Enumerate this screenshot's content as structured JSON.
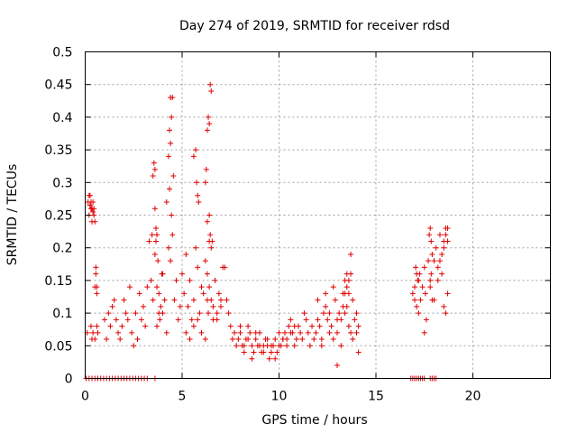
{
  "chart_data": {
    "type": "scatter",
    "title": "Day 274 of 2019, SRMTID for receiver rdsd",
    "xlabel": "GPS time / hours",
    "ylabel": "SRMTID / TECUs",
    "xlim": [
      0,
      24
    ],
    "ylim": [
      0,
      0.5
    ],
    "grid": true,
    "marker": "+",
    "series_color": "#e00000",
    "x_ticks": [
      0,
      5,
      10,
      15,
      20
    ],
    "x_tick_labels": [
      "0",
      "5",
      "10",
      "15",
      "20"
    ],
    "y_ticks": [
      0,
      0.05,
      0.1,
      0.15,
      0.2,
      0.25,
      0.3,
      0.35,
      0.4,
      0.45,
      0.5
    ],
    "y_tick_labels": [
      "0",
      "0.05",
      "0.1",
      "0.15",
      "0.2",
      "0.25",
      "0.3",
      "0.35",
      "0.4",
      "0.45",
      "0.5"
    ],
    "series": [
      {
        "name": "SRMTID",
        "x": [
          0.1,
          0.15,
          0.2,
          0.25,
          0.3,
          0.35,
          0.4,
          0.45,
          0.5,
          0.55,
          0.6,
          0.2,
          0.25,
          0.3,
          0.35,
          0.4,
          0.45,
          0.5,
          0.3,
          0.35,
          0.4,
          0.5,
          0.55,
          0.6,
          0.6,
          0.65,
          1.0,
          1.1,
          1.2,
          1.3,
          1.4,
          1.5,
          1.6,
          1.7,
          1.8,
          1.9,
          2.0,
          2.1,
          2.2,
          2.3,
          2.4,
          2.5,
          2.6,
          2.7,
          2.8,
          2.9,
          3.0,
          3.1,
          3.2,
          3.3,
          3.4,
          3.45,
          3.5,
          3.55,
          3.6,
          3.65,
          3.7,
          3.75,
          3.8,
          3.85,
          3.9,
          3.95,
          4.0,
          4.1,
          4.2,
          4.3,
          4.35,
          4.4,
          4.45,
          4.5,
          4.55,
          4.6,
          4.7,
          4.8,
          4.9,
          5.0,
          4.2,
          4.3,
          4.35,
          4.4,
          4.45,
          3.5,
          3.6,
          3.65,
          3.7,
          4.4,
          4.5,
          3.6,
          3.7,
          3.8,
          4.0,
          5.1,
          5.2,
          5.3,
          5.4,
          5.5,
          5.6,
          5.7,
          5.8,
          5.9,
          6.0,
          6.1,
          6.2,
          6.3,
          6.4,
          6.5,
          6.6,
          6.7,
          6.8,
          6.9,
          7.0,
          5.6,
          5.7,
          5.75,
          5.8,
          5.85,
          6.2,
          6.25,
          6.3,
          6.35,
          6.4,
          6.45,
          6.5,
          6.3,
          6.4,
          6.45,
          6.3,
          6.35,
          6.4,
          6.5,
          6.55,
          5.2,
          5.4,
          5.6,
          5.8,
          6.0,
          6.2,
          6.6,
          6.8,
          7.0,
          7.1,
          7.2,
          7.3,
          7.4,
          7.5,
          7.6,
          7.7,
          7.8,
          7.9,
          8.0,
          8.1,
          8.2,
          8.3,
          8.4,
          8.5,
          8.6,
          8.7,
          8.8,
          8.9,
          9.0,
          9.1,
          9.2,
          9.3,
          9.4,
          9.5,
          9.6,
          9.7,
          9.8,
          9.9,
          10.0,
          8.0,
          8.2,
          8.4,
          8.6,
          8.8,
          9.0,
          9.2,
          9.4,
          9.6,
          9.8,
          10.0,
          10.2,
          10.4,
          10.6,
          10.8,
          10.1,
          10.2,
          10.3,
          10.4,
          10.5,
          10.6,
          10.7,
          10.8,
          10.9,
          11.0,
          11.1,
          11.2,
          11.3,
          11.4,
          11.5,
          11.6,
          11.7,
          11.8,
          11.9,
          12.0,
          12.1,
          12.2,
          12.3,
          12.4,
          12.5,
          12.6,
          12.7,
          12.8,
          12.9,
          13.0,
          13.1,
          13.2,
          13.3,
          13.4,
          13.5,
          13.6,
          13.7,
          13.8,
          13.9,
          14.0,
          14.1,
          12.0,
          12.2,
          12.4,
          12.6,
          12.8,
          13.0,
          13.2,
          13.4,
          13.5,
          13.6,
          13.7,
          13.8,
          13.3,
          13.5,
          13.7,
          13.6,
          13.4,
          13.0,
          14.0,
          14.1,
          16.9,
          17.0,
          17.05,
          17.1,
          17.15,
          17.2,
          17.25,
          17.3,
          17.4,
          17.5,
          17.55,
          17.6,
          17.7,
          17.75,
          17.8,
          17.85,
          17.9,
          18.0,
          18.1,
          18.2,
          18.3,
          18.4,
          18.5,
          18.6,
          18.7,
          17.0,
          17.1,
          17.2,
          17.8,
          17.85,
          17.9,
          18.3,
          18.4,
          18.5,
          18.6,
          18.6,
          18.5,
          18.7,
          17.5,
          17.8,
          18.0,
          18.2,
          18.7,
          0.05,
          0.2,
          0.35,
          0.5,
          0.65,
          0.8,
          0.95,
          1.1,
          1.25,
          1.4,
          1.55,
          1.7,
          1.85,
          2.0,
          2.15,
          2.3,
          2.45,
          2.6,
          2.75,
          2.9,
          3.05,
          3.2,
          3.6,
          16.8,
          16.9,
          17.0,
          17.1,
          17.2,
          17.3,
          17.4,
          17.5,
          17.8,
          17.9,
          18.0,
          18.1
        ],
        "y": [
          0.07,
          0.27,
          0.25,
          0.28,
          0.26,
          0.24,
          0.27,
          0.26,
          0.06,
          0.17,
          0.14,
          0.28,
          0.265,
          0.27,
          0.26,
          0.255,
          0.25,
          0.24,
          0.08,
          0.06,
          0.07,
          0.14,
          0.16,
          0.13,
          0.08,
          0.07,
          0.09,
          0.06,
          0.1,
          0.08,
          0.11,
          0.12,
          0.09,
          0.07,
          0.06,
          0.08,
          0.12,
          0.1,
          0.09,
          0.14,
          0.07,
          0.05,
          0.1,
          0.06,
          0.13,
          0.09,
          0.11,
          0.08,
          0.14,
          0.21,
          0.15,
          0.22,
          0.12,
          0.33,
          0.32,
          0.21,
          0.08,
          0.18,
          0.13,
          0.09,
          0.11,
          0.16,
          0.1,
          0.12,
          0.07,
          0.2,
          0.29,
          0.36,
          0.4,
          0.43,
          0.31,
          0.12,
          0.15,
          0.09,
          0.11,
          0.16,
          0.27,
          0.34,
          0.38,
          0.43,
          0.25,
          0.31,
          0.26,
          0.23,
          0.22,
          0.18,
          0.22,
          0.19,
          0.14,
          0.1,
          0.16,
          0.13,
          0.19,
          0.11,
          0.15,
          0.09,
          0.12,
          0.2,
          0.17,
          0.1,
          0.14,
          0.13,
          0.18,
          0.16,
          0.21,
          0.12,
          0.11,
          0.15,
          0.09,
          0.13,
          0.11,
          0.34,
          0.35,
          0.3,
          0.28,
          0.27,
          0.3,
          0.32,
          0.38,
          0.4,
          0.39,
          0.45,
          0.44,
          0.24,
          0.25,
          0.22,
          0.12,
          0.1,
          0.14,
          0.2,
          0.21,
          0.07,
          0.06,
          0.08,
          0.09,
          0.07,
          0.06,
          0.09,
          0.1,
          0.12,
          0.17,
          0.17,
          0.12,
          0.1,
          0.08,
          0.06,
          0.07,
          0.05,
          0.06,
          0.07,
          0.05,
          0.04,
          0.06,
          0.08,
          0.07,
          0.05,
          0.04,
          0.06,
          0.05,
          0.07,
          0.04,
          0.05,
          0.06,
          0.05,
          0.03,
          0.04,
          0.05,
          0.06,
          0.04,
          0.05,
          0.08,
          0.05,
          0.06,
          0.03,
          0.07,
          0.05,
          0.04,
          0.06,
          0.05,
          0.03,
          0.07,
          0.06,
          0.05,
          0.07,
          0.08,
          0.05,
          0.06,
          0.07,
          0.06,
          0.08,
          0.09,
          0.07,
          0.05,
          0.06,
          0.08,
          0.07,
          0.06,
          0.1,
          0.09,
          0.07,
          0.05,
          0.08,
          0.06,
          0.07,
          0.09,
          0.08,
          0.06,
          0.1,
          0.11,
          0.09,
          0.07,
          0.08,
          0.06,
          0.12,
          0.07,
          0.1,
          0.09,
          0.13,
          0.15,
          0.11,
          0.08,
          0.07,
          0.06,
          0.09,
          0.07,
          0.04,
          0.12,
          0.05,
          0.13,
          0.1,
          0.14,
          0.09,
          0.05,
          0.13,
          0.16,
          0.15,
          0.16,
          0.12,
          0.11,
          0.14,
          0.19,
          0.13,
          0.1,
          0.02,
          0.1,
          0.08,
          0.13,
          0.14,
          0.17,
          0.11,
          0.15,
          0.1,
          0.16,
          0.12,
          0.14,
          0.17,
          0.13,
          0.09,
          0.18,
          0.22,
          0.15,
          0.16,
          0.12,
          0.18,
          0.2,
          0.17,
          0.22,
          0.19,
          0.21,
          0.23,
          0.13,
          0.12,
          0.16,
          0.15,
          0.23,
          0.21,
          0.19,
          0.18,
          0.16,
          0.2,
          0.22,
          0.1,
          0.11,
          0.21,
          0.07,
          0.14,
          0.12,
          0.15,
          0.23,
          0.0,
          0.0,
          0.0,
          0.0,
          0.0,
          0.0,
          0.0,
          0.0,
          0.0,
          0.0,
          0.0,
          0.0,
          0.0,
          0.0,
          0.0,
          0.0,
          0.0,
          0.0,
          0.0,
          0.0,
          0.0,
          0.0,
          0.0,
          0.0,
          0.0,
          0.0,
          0.0,
          0.0,
          0.0,
          0.0,
          0.0,
          0.0,
          0.0,
          0.0,
          0.0
        ]
      }
    ]
  }
}
